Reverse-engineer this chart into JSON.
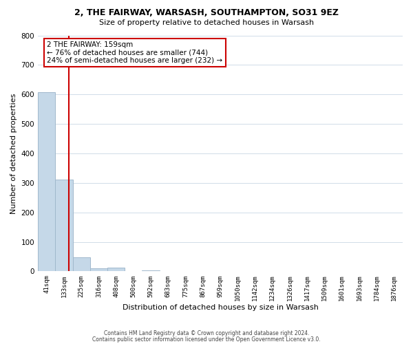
{
  "title1": "2, THE FAIRWAY, WARSASH, SOUTHAMPTON, SO31 9EZ",
  "title2": "Size of property relative to detached houses in Warsash",
  "xlabel": "Distribution of detached houses by size in Warsash",
  "ylabel": "Number of detached properties",
  "bar_labels": [
    "41sqm",
    "133sqm",
    "225sqm",
    "316sqm",
    "408sqm",
    "500sqm",
    "592sqm",
    "683sqm",
    "775sqm",
    "867sqm",
    "959sqm",
    "1050sqm",
    "1142sqm",
    "1234sqm",
    "1326sqm",
    "1417sqm",
    "1509sqm",
    "1601sqm",
    "1693sqm",
    "1784sqm",
    "1876sqm"
  ],
  "bar_values": [
    607,
    311,
    48,
    11,
    13,
    0,
    4,
    0,
    0,
    0,
    0,
    0,
    0,
    0,
    0,
    0,
    0,
    0,
    0,
    0,
    0
  ],
  "bar_color": "#c5d8e8",
  "bar_edge_color": "#a0b8cc",
  "ylim": [
    0,
    800
  ],
  "yticks": [
    0,
    100,
    200,
    300,
    400,
    500,
    600,
    700,
    800
  ],
  "vline_x": 1.27,
  "vline_color": "#cc0000",
  "annotation_text": "2 THE FAIRWAY: 159sqm\n← 76% of detached houses are smaller (744)\n24% of semi-detached houses are larger (232) →",
  "annotation_box_color": "#ffffff",
  "annotation_box_edge": "#cc0000",
  "footer1": "Contains HM Land Registry data © Crown copyright and database right 2024.",
  "footer2": "Contains public sector information licensed under the Open Government Licence v3.0.",
  "bg_color": "#ffffff",
  "grid_color": "#d0dce8"
}
